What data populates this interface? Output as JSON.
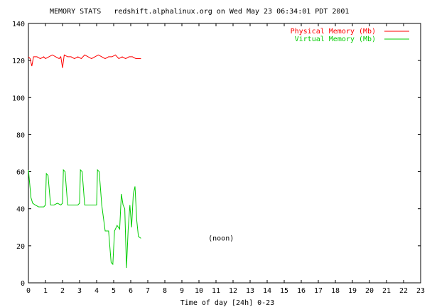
{
  "chart_data": {
    "type": "line",
    "title": "MEMORY STATS   redshift.alphalinux.org on Wed May 23 06:34:01 PDT 2001",
    "xlabel": "Time of day [24h] 0-23",
    "ylabel": "",
    "xlim": [
      0,
      23
    ],
    "ylim": [
      0,
      140
    ],
    "x_ticks": [
      "0",
      "1",
      "2",
      "3",
      "4",
      "5",
      "6",
      "7",
      "8",
      "9",
      "10",
      "11",
      "12",
      "13",
      "14",
      "15",
      "16",
      "17",
      "18",
      "19",
      "20",
      "21",
      "22",
      "23"
    ],
    "y_ticks": [
      "0",
      "20",
      "40",
      "60",
      "80",
      "100",
      "120",
      "140"
    ],
    "grid": false,
    "legend_position": "top-right",
    "annotations": [
      {
        "text": "(noon)",
        "x": 11.3,
        "y": 24
      }
    ],
    "series": [
      {
        "name": "Physical Memory (Mb)",
        "color": "#ff0000",
        "x": [
          0,
          0.1,
          0.2,
          0.3,
          0.5,
          0.7,
          0.9,
          1.0,
          1.2,
          1.4,
          1.6,
          1.8,
          1.9,
          2.0,
          2.1,
          2.3,
          2.5,
          2.7,
          2.9,
          3.1,
          3.3,
          3.5,
          3.7,
          3.9,
          4.1,
          4.3,
          4.5,
          4.7,
          4.9,
          5.1,
          5.3,
          5.5,
          5.7,
          5.9,
          6.1,
          6.3,
          6.6
        ],
        "values": [
          122,
          121,
          117,
          122,
          122,
          121,
          122,
          121,
          122,
          123,
          122,
          121,
          122,
          116,
          123,
          122,
          122,
          121,
          122,
          121,
          123,
          122,
          121,
          122,
          123,
          122,
          121,
          122,
          122,
          123,
          121,
          122,
          121,
          122,
          122,
          121,
          121
        ]
      },
      {
        "name": "Virtual Memory (Mb)",
        "color": "#00cc00",
        "x": [
          0,
          0.15,
          0.25,
          0.4,
          0.6,
          0.8,
          0.9,
          1.0,
          1.05,
          1.15,
          1.3,
          1.5,
          1.7,
          1.9,
          2.0,
          2.05,
          2.15,
          2.3,
          2.6,
          2.9,
          3.0,
          3.05,
          3.15,
          3.3,
          3.6,
          3.9,
          4.0,
          4.05,
          4.15,
          4.3,
          4.5,
          4.7,
          4.85,
          4.95,
          5.05,
          5.2,
          5.35,
          5.45,
          5.55,
          5.65,
          5.75,
          5.85,
          5.95,
          6.05,
          6.15,
          6.25,
          6.35,
          6.45,
          6.6
        ],
        "values": [
          61,
          46,
          43,
          42,
          41,
          41,
          41,
          42,
          59,
          58,
          42,
          42,
          43,
          42,
          43,
          61,
          60,
          42,
          42,
          42,
          43,
          61,
          60,
          42,
          42,
          42,
          42,
          61,
          60,
          42,
          28,
          28,
          11,
          10,
          28,
          31,
          29,
          48,
          42,
          40,
          8,
          29,
          42,
          30,
          48,
          52,
          34,
          25,
          24
        ]
      }
    ]
  }
}
